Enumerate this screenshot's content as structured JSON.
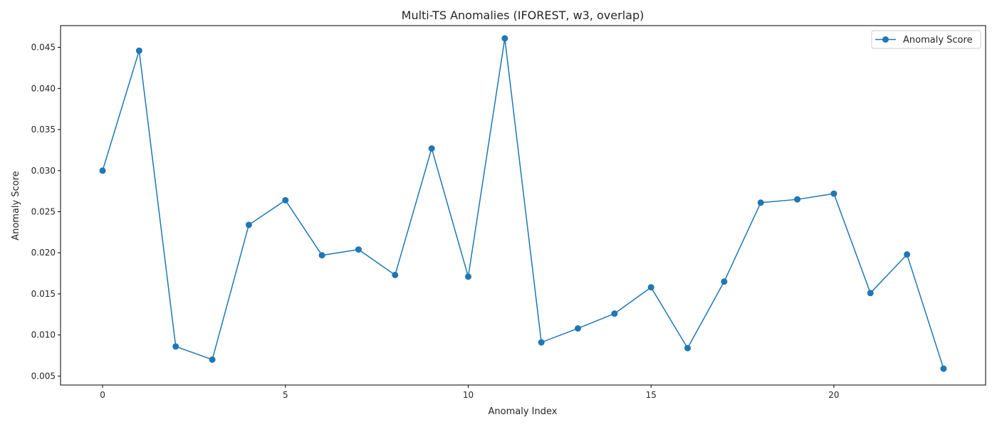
{
  "chart_data": {
    "type": "line",
    "title": "Multi-TS Anomalies (IFOREST, w3, overlap)",
    "xlabel": "Anomaly Index",
    "ylabel": "Anomaly Score",
    "x": [
      0,
      1,
      2,
      3,
      4,
      5,
      6,
      7,
      8,
      9,
      10,
      11,
      12,
      13,
      14,
      15,
      16,
      17,
      18,
      19,
      20,
      21,
      22,
      23
    ],
    "series": [
      {
        "name": "Anomaly Score",
        "color": "#1f77b4",
        "marker": "circle",
        "values": [
          0.03,
          0.0446,
          0.0086,
          0.007,
          0.0234,
          0.0264,
          0.0197,
          0.0204,
          0.0173,
          0.0327,
          0.0171,
          0.0461,
          0.0091,
          0.0108,
          0.0126,
          0.0158,
          0.0084,
          0.0165,
          0.0261,
          0.0265,
          0.0272,
          0.0151,
          0.0198,
          0.0059
        ]
      }
    ],
    "xlim": [
      -1.15,
      24.15
    ],
    "ylim": [
      0.00391,
      0.04765
    ],
    "xticks": [
      0,
      5,
      10,
      15,
      20
    ],
    "xtick_labels": [
      "0",
      "5",
      "10",
      "15",
      "20"
    ],
    "yticks": [
      0.005,
      0.01,
      0.015,
      0.02,
      0.025,
      0.03,
      0.035,
      0.04,
      0.045
    ],
    "ytick_labels": [
      "0.005",
      "0.010",
      "0.015",
      "0.020",
      "0.025",
      "0.030",
      "0.035",
      "0.040",
      "0.045"
    ],
    "grid": false,
    "legend_position": "top-right"
  }
}
